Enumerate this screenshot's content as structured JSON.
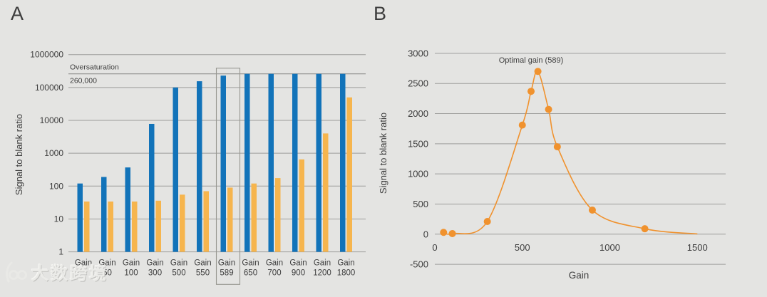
{
  "page": {
    "background_color": "#e4e4e2",
    "text_color": "#3e3e3e",
    "gridline_color": "#9d9d9b"
  },
  "panels": [
    {
      "label": "A"
    },
    {
      "label": "B"
    }
  ],
  "watermark": {
    "text": "大数跨境",
    "logo": "dashu-kuajing-logo"
  },
  "chart_data": [
    {
      "type": "bar",
      "panel": "A",
      "y_scale": "log",
      "ylabel": "Signal to blank ratio",
      "ylim": [
        1,
        1000000
      ],
      "yticks": [
        1,
        10,
        100,
        1000,
        10000,
        100000,
        1000000
      ],
      "grid": "horizontal",
      "legend": "none",
      "categories": [
        "Gain 5",
        "Gain 50",
        "Gain 100",
        "Gain 300",
        "Gain 500",
        "Gain 550",
        "Gain 589",
        "Gain 650",
        "Gain 700",
        "Gain 900",
        "Gain 1200",
        "Gain 1800"
      ],
      "series": [
        {
          "name": "blue",
          "color": "#1273b9",
          "values": [
            120,
            190,
            370,
            7800,
            100000,
            155000,
            230000,
            260000,
            260000,
            260000,
            260000,
            260000
          ]
        },
        {
          "name": "orange",
          "color": "#f6b54e",
          "values": [
            34,
            34,
            34,
            36,
            55,
            70,
            90,
            120,
            175,
            650,
            4000,
            50000
          ]
        }
      ],
      "annotations": {
        "oversaturation_label": "Oversaturation",
        "oversaturation_value_label": "260,000",
        "oversaturation_value": 260000,
        "highlighted_category": "Gain 589"
      }
    },
    {
      "type": "line",
      "panel": "B",
      "xlabel": "Gain",
      "ylabel": "Signal to blank ratio",
      "ylim": [
        -500,
        3000
      ],
      "xlim": [
        0,
        1660
      ],
      "yticks": [
        3000,
        2500,
        2000,
        1500,
        1000,
        500,
        0,
        -500
      ],
      "xticks": [
        0,
        500,
        1000,
        1500
      ],
      "grid": "horizontal",
      "line_color": "#f0922e",
      "marker": "circle",
      "points": [
        {
          "x": 50,
          "y": 30
        },
        {
          "x": 100,
          "y": 10
        },
        {
          "x": 300,
          "y": 210
        },
        {
          "x": 500,
          "y": 1810
        },
        {
          "x": 550,
          "y": 2370
        },
        {
          "x": 589,
          "y": 2700
        },
        {
          "x": 650,
          "y": 2070
        },
        {
          "x": 700,
          "y": 1450
        },
        {
          "x": 900,
          "y": 400
        },
        {
          "x": 1200,
          "y": 90
        }
      ],
      "curve_tail": {
        "x": 1500,
        "y": 5
      },
      "annotation": {
        "text": "Optimal gain (589)",
        "x": 589,
        "y": 2700
      }
    }
  ]
}
